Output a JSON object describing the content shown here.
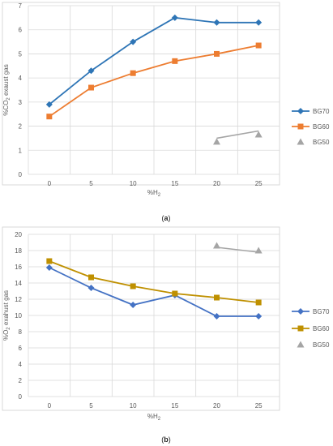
{
  "chart_data": [
    {
      "type": "line",
      "caption": "(a)",
      "x": [
        0,
        5,
        10,
        15,
        20,
        25
      ],
      "x_tick_labels": [
        "0",
        "5",
        "10",
        "15",
        "20",
        "25"
      ],
      "xlabel_main": "%H",
      "xlabel_sub": "2",
      "ylabel_pre": "%CO",
      "ylabel_sub": "2",
      "ylabel_post": " exaust gas",
      "ylim": [
        0,
        7
      ],
      "y_ticks": [
        0,
        1,
        2,
        3,
        4,
        5,
        6,
        7
      ],
      "y_tick_labels": [
        "0",
        "1",
        "2",
        "3",
        "4",
        "5",
        "6",
        "7"
      ],
      "grid": true,
      "legend_position": "right",
      "series": [
        {
          "name": "BG70",
          "color": "#2e75b6",
          "marker": "diamond",
          "x": [
            0,
            5,
            10,
            15,
            20,
            25
          ],
          "values": [
            2.9,
            4.3,
            5.5,
            6.5,
            6.3,
            6.3
          ]
        },
        {
          "name": "BG60",
          "color": "#ed7d31",
          "marker": "square",
          "x": [
            0,
            5,
            10,
            15,
            20,
            25
          ],
          "values": [
            2.4,
            3.6,
            4.2,
            4.7,
            5.0,
            5.35
          ]
        },
        {
          "name": "BG50",
          "color": "#a5a5a5",
          "marker": "triangle",
          "x": [
            20,
            25
          ],
          "values": [
            1.35,
            1.65
          ],
          "trend": [
            1.5,
            1.8
          ]
        }
      ]
    },
    {
      "type": "line",
      "caption": "(b)",
      "x": [
        0,
        5,
        10,
        15,
        20,
        25
      ],
      "x_tick_labels": [
        "0",
        "5",
        "10",
        "15",
        "20",
        "25"
      ],
      "xlabel_main": "%H",
      "xlabel_sub": "2",
      "ylabel_pre": "%O",
      "ylabel_sub": "2",
      "ylabel_post": " exahust gas",
      "ylim": [
        0,
        20
      ],
      "y_ticks": [
        0,
        2,
        4,
        6,
        8,
        10,
        12,
        14,
        16,
        18,
        20
      ],
      "y_tick_labels": [
        "0",
        "2",
        "4",
        "6",
        "8",
        "10",
        "12",
        "14",
        "16",
        "18",
        "20"
      ],
      "grid": true,
      "legend_position": "right",
      "series": [
        {
          "name": "BG70",
          "color": "#4472c4",
          "marker": "diamond",
          "x": [
            0,
            5,
            10,
            15,
            20,
            25
          ],
          "values": [
            15.9,
            13.4,
            11.3,
            12.5,
            9.9,
            9.9
          ]
        },
        {
          "name": "BG60",
          "color": "#bf9000",
          "marker": "square",
          "x": [
            0,
            5,
            10,
            15,
            20,
            25
          ],
          "values": [
            16.7,
            14.7,
            13.6,
            12.7,
            12.2,
            11.6
          ]
        },
        {
          "name": "BG50",
          "color": "#a5a5a5",
          "marker": "triangle",
          "x": [
            20,
            25
          ],
          "values": [
            18.6,
            18.0
          ],
          "trend": [
            18.4,
            17.8
          ]
        }
      ]
    }
  ]
}
